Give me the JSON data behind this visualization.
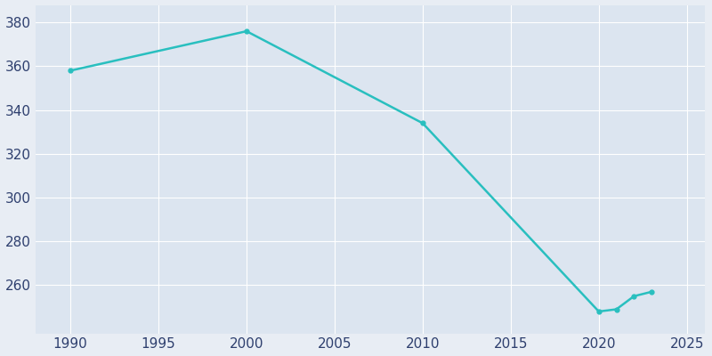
{
  "years": [
    1990,
    2000,
    2010,
    2020,
    2021,
    2022,
    2023
  ],
  "population": [
    358,
    376,
    334,
    248,
    249,
    255,
    257
  ],
  "line_color": "#29BFBF",
  "bg_color": "#E8EDF4",
  "plot_bg_color": "#DCE5F0",
  "grid_color": "#FFFFFF",
  "tick_color": "#2E3F6E",
  "xlim": [
    1988,
    2026
  ],
  "ylim": [
    238,
    388
  ],
  "yticks": [
    260,
    280,
    300,
    320,
    340,
    360,
    380
  ],
  "xticks": [
    1990,
    1995,
    2000,
    2005,
    2010,
    2015,
    2020,
    2025
  ],
  "linewidth": 1.8,
  "markersize": 3.5,
  "tick_labelsize": 11
}
